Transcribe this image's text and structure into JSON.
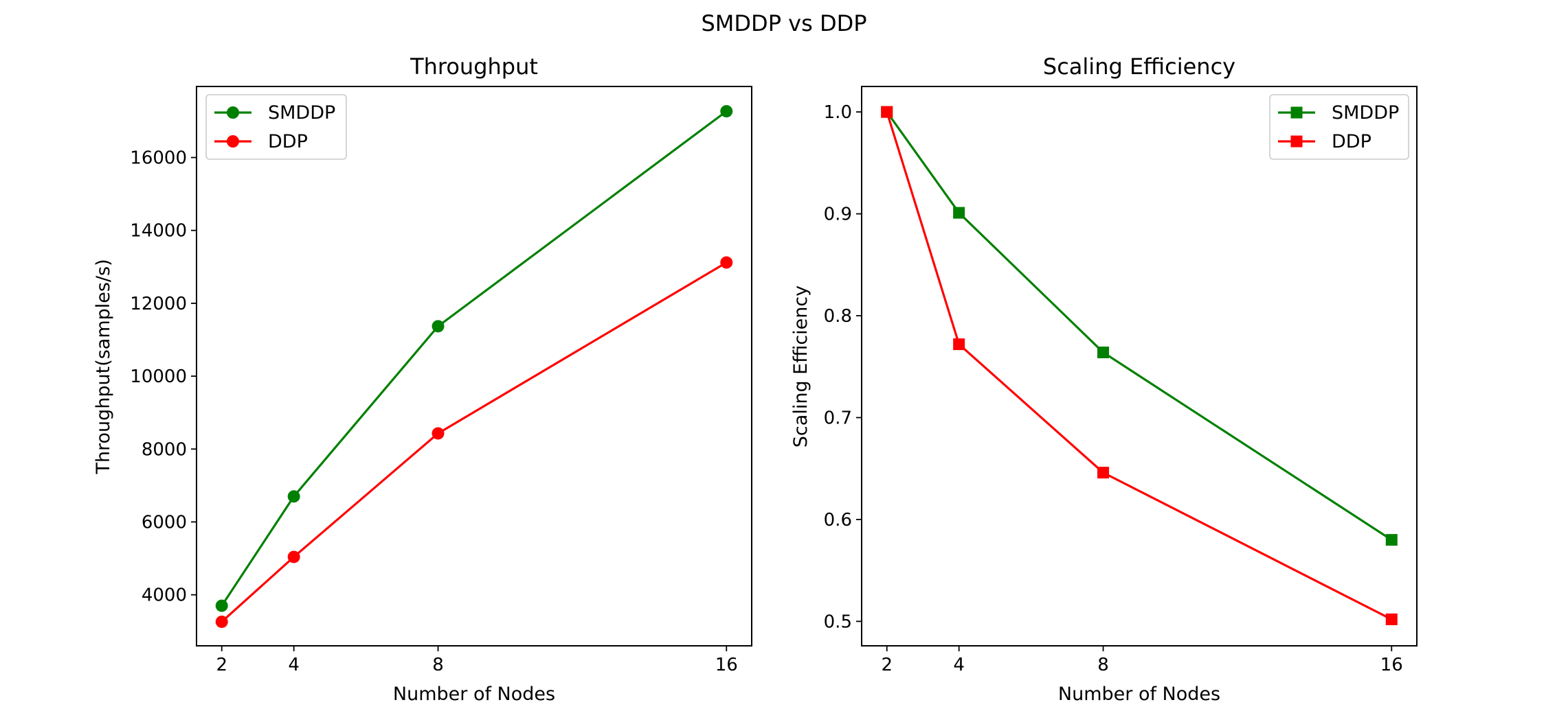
{
  "suptitle": "SMDDP vs DDP",
  "colors": {
    "SMDDP": "#008000",
    "DDP": "#ff0000"
  },
  "chart_data": [
    {
      "type": "line",
      "title": "Throughput",
      "xlabel": "Number of Nodes",
      "ylabel": "Throughput(samples/s)",
      "x": [
        2,
        4,
        8,
        16
      ],
      "xticks": [
        2,
        4,
        8,
        16
      ],
      "xlim": [
        1.3,
        16.7
      ],
      "yticks": [
        4000,
        6000,
        8000,
        10000,
        12000,
        14000,
        16000
      ],
      "ylim": [
        2600,
        17950
      ],
      "marker": "circle",
      "legend": "upper left",
      "grid": false,
      "series": [
        {
          "name": "SMDDP",
          "color": "#008000",
          "values": [
            3700,
            6700,
            11370,
            17270
          ]
        },
        {
          "name": "DDP",
          "color": "#ff0000",
          "values": [
            3260,
            5040,
            8430,
            13120
          ]
        }
      ]
    },
    {
      "type": "line",
      "title": "Scaling Efficiency",
      "xlabel": "Number of Nodes",
      "ylabel": "Scaling Efficiency",
      "x": [
        2,
        4,
        8,
        16
      ],
      "xticks": [
        2,
        4,
        8,
        16
      ],
      "xlim": [
        1.3,
        16.7
      ],
      "yticks": [
        0.5,
        0.6,
        0.7,
        0.8,
        0.9,
        1.0
      ],
      "ylim": [
        0.476,
        1.025
      ],
      "marker": "square",
      "legend": "upper right",
      "grid": false,
      "series": [
        {
          "name": "SMDDP",
          "color": "#008000",
          "values": [
            1.0,
            0.901,
            0.764,
            0.58
          ]
        },
        {
          "name": "DDP",
          "color": "#ff0000",
          "values": [
            1.0,
            0.772,
            0.646,
            0.502
          ]
        }
      ]
    }
  ]
}
